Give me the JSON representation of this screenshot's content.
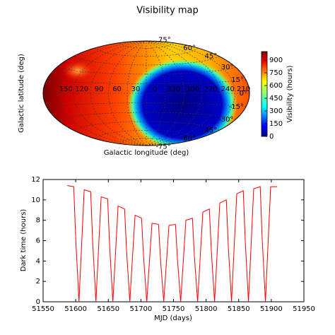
{
  "chart_data": [
    {
      "type": "sky_map",
      "title": "Visibility map",
      "xlabel": "Galactic longitude (deg)",
      "ylabel": "Galactic latitude (deg)",
      "xticks": [
        150,
        120,
        90,
        60,
        30,
        0,
        330,
        300,
        270,
        240,
        210
      ],
      "yticks": [
        {
          "value": 75,
          "label": "75°"
        },
        {
          "value": 60,
          "label": "60°"
        },
        {
          "value": 45,
          "label": "45°"
        },
        {
          "value": 30,
          "label": "30°"
        },
        {
          "value": 15,
          "label": "15°"
        },
        {
          "value": 0,
          "label": "0°"
        },
        {
          "value": -15,
          "label": "-15°"
        },
        {
          "value": -30,
          "label": "-30°"
        },
        {
          "value": -45,
          "label": "-45°"
        },
        {
          "value": -60,
          "label": "-60°"
        },
        {
          "value": -75,
          "label": "-75°"
        }
      ],
      "colorbar": {
        "label": "Visibility (hours)",
        "clim": [
          0,
          1000
        ],
        "ticks": [
          0,
          150,
          300,
          450,
          600,
          750,
          900
        ]
      }
    },
    {
      "type": "line",
      "xlabel": "MJD (days)",
      "ylabel": "Dark time (hours)",
      "color": "#ff0000",
      "xlim": [
        51550,
        51950
      ],
      "xticks": [
        51550,
        51600,
        51650,
        51700,
        51750,
        51800,
        51850,
        51900,
        51950
      ],
      "ylim": [
        0,
        12
      ],
      "yticks": [
        0,
        2,
        4,
        6,
        8,
        10,
        12
      ],
      "x": [
        51587,
        51597,
        51600,
        51605,
        51613,
        51623,
        51626,
        51631,
        51639,
        51649,
        51652,
        51657,
        51665,
        51675,
        51678,
        51683,
        51691,
        51701,
        51704,
        51709,
        51717,
        51727,
        51730,
        51735,
        51743,
        51753,
        51756,
        51761,
        51769,
        51779,
        51782,
        51787,
        51795,
        51805,
        51808,
        51813,
        51821,
        51831,
        51834,
        51839,
        51847,
        51857,
        51860,
        51865,
        51873,
        51883,
        51886,
        51891,
        51899,
        51909
      ],
      "series": [
        {
          "values": [
            11.4,
            11.3,
            6.2,
            0,
            11.0,
            10.8,
            5.9,
            0,
            10.3,
            10.1,
            5.5,
            0,
            9.4,
            9.1,
            5.0,
            0,
            8.5,
            8.2,
            4.5,
            0,
            7.7,
            7.6,
            4.2,
            0,
            7.5,
            7.6,
            4.2,
            0,
            8.0,
            8.2,
            4.5,
            0,
            8.8,
            9.1,
            5.0,
            0,
            9.7,
            10.0,
            5.5,
            0,
            10.6,
            10.9,
            6.0,
            0,
            11.1,
            11.3,
            6.2,
            0,
            11.3,
            11.3
          ]
        }
      ]
    }
  ]
}
